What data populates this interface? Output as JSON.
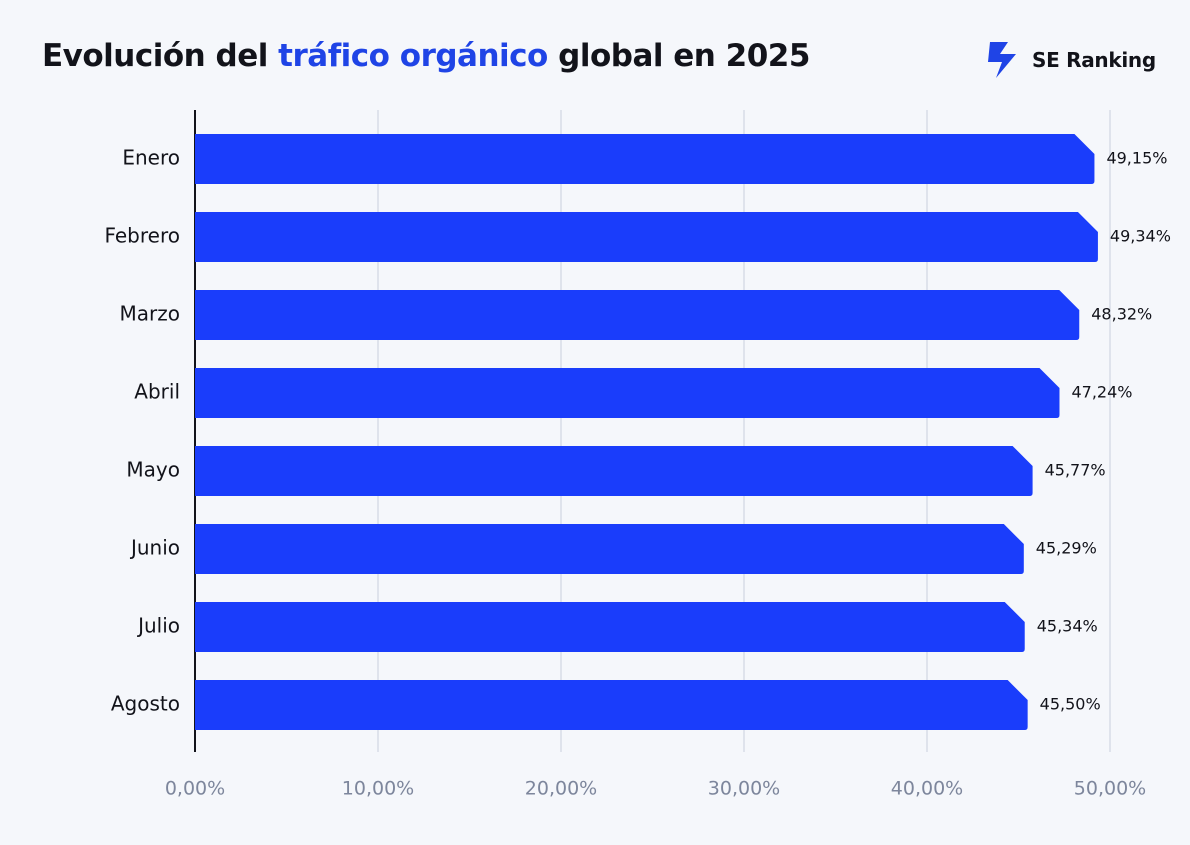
{
  "chart_data": {
    "type": "bar",
    "orientation": "horizontal",
    "title_parts": [
      "Evolución del ",
      "tráfico orgánico",
      " global en 2025"
    ],
    "brand": "SE Ranking",
    "categories": [
      "Enero",
      "Febrero",
      "Marzo",
      "Abril",
      "Mayo",
      "Junio",
      "Julio",
      "Agosto"
    ],
    "values": [
      49.15,
      49.34,
      48.32,
      47.24,
      45.77,
      45.29,
      45.34,
      45.5
    ],
    "value_labels": [
      "49,15%",
      "49,34%",
      "48,32%",
      "47,24%",
      "45,77%",
      "45,29%",
      "45,34%",
      "45,50%"
    ],
    "color": "#1a3dfb",
    "xlim": [
      0,
      50
    ],
    "xticks": [
      {
        "value": 0,
        "label": "0,00%"
      },
      {
        "value": 10,
        "label": "10,00%"
      },
      {
        "value": 20,
        "label": "20,00%"
      },
      {
        "value": 30,
        "label": "30,00%"
      },
      {
        "value": 40,
        "label": "40,00%"
      },
      {
        "value": 50,
        "label": "50,00%"
      }
    ],
    "grid": true
  }
}
